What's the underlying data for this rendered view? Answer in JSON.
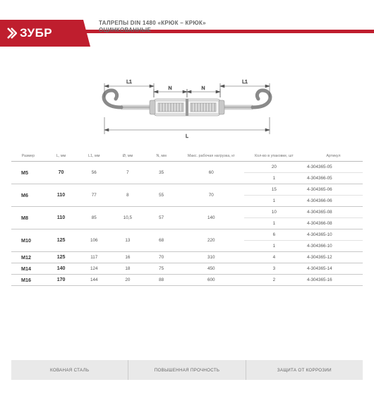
{
  "brand": {
    "name": "ЗУБР"
  },
  "header": {
    "title_l1": "ТАЛРЕПЫ DIN 1480 «КРЮК – КРЮК»",
    "title_l2": "ОЦИНКОВАННЫЕ"
  },
  "colors": {
    "accent": "#bf1e2e",
    "rule": "#c8c8c8",
    "feature_bg": "#e9e9e9"
  },
  "diagram": {
    "labels": {
      "L": "L",
      "L1": "L1",
      "N": "N"
    }
  },
  "table": {
    "columns": [
      "Размер",
      "L, мм",
      "L1, мм",
      "Ø, мм",
      "N, мм",
      "Макс. рабочая нагрузка, кг",
      "Кол-во в упаковке, шт",
      "Артикул"
    ],
    "rows": [
      {
        "size": "M5",
        "L": "70",
        "L1": "56",
        "D": "7",
        "N": "35",
        "load": "60",
        "packs": [
          "20",
          "1"
        ],
        "arts": [
          "4-304365-05",
          "4-304366-05"
        ]
      },
      {
        "size": "M6",
        "L": "110",
        "L1": "77",
        "D": "8",
        "N": "55",
        "load": "70",
        "packs": [
          "15",
          "1"
        ],
        "arts": [
          "4-304365-06",
          "4-304366-06"
        ]
      },
      {
        "size": "M8",
        "L": "110",
        "L1": "85",
        "D": "10,5",
        "N": "57",
        "load": "140",
        "packs": [
          "10",
          "1"
        ],
        "arts": [
          "4-304365-08",
          "4-304366-08"
        ]
      },
      {
        "size": "M10",
        "L": "125",
        "L1": "106",
        "D": "13",
        "N": "68",
        "load": "220",
        "packs": [
          "6",
          "1"
        ],
        "arts": [
          "4-304365-10",
          "4-304366-10"
        ]
      },
      {
        "size": "M12",
        "L": "125",
        "L1": "117",
        "D": "16",
        "N": "70",
        "load": "310",
        "packs": [
          "4"
        ],
        "arts": [
          "4-304365-12"
        ]
      },
      {
        "size": "M14",
        "L": "140",
        "L1": "124",
        "D": "18",
        "N": "75",
        "load": "450",
        "packs": [
          "3"
        ],
        "arts": [
          "4-304365-14"
        ]
      },
      {
        "size": "M16",
        "L": "170",
        "L1": "144",
        "D": "20",
        "N": "88",
        "load": "600",
        "packs": [
          "2"
        ],
        "arts": [
          "4-304365-16"
        ]
      }
    ]
  },
  "features": {
    "f1": "КОВАНАЯ СТАЛЬ",
    "f2": "ПОВЫШЕННАЯ ПРОЧНОСТЬ",
    "f3": "ЗАЩИТА ОТ КОРРОЗИИ"
  }
}
